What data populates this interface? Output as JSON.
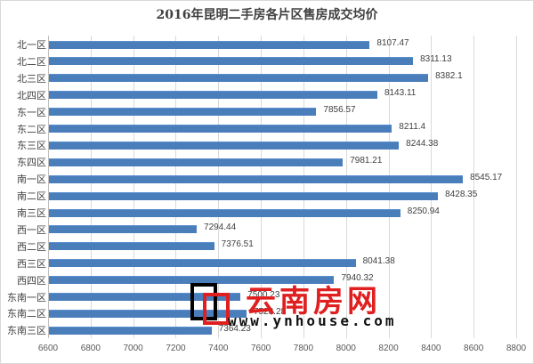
{
  "chart_data": {
    "type": "bar",
    "orientation": "horizontal",
    "title": "2016年昆明二手房各片区售房成交均价",
    "xlabel": "",
    "ylabel": "",
    "xlim": [
      6600,
      8800
    ],
    "x_ticks": [
      "6600",
      "6800",
      "7000",
      "7200",
      "7400",
      "7600",
      "7800",
      "8000",
      "8200",
      "8400",
      "8600",
      "8800"
    ],
    "grid": true,
    "legend": "none",
    "bar_color": "#4a7ebb",
    "categories": [
      "北一区",
      "北二区",
      "北三区",
      "北四区",
      "东一区",
      "东二区",
      "东三区",
      "东四区",
      "南一区",
      "南二区",
      "南三区",
      "西一区",
      "西二区",
      "西三区",
      "西四区",
      "东南一区",
      "东南二区",
      "东南三区"
    ],
    "values": [
      8107.47,
      8311.13,
      8382.1,
      8143.11,
      7856.57,
      8211.4,
      8244.38,
      7981.21,
      8545.17,
      8428.35,
      8250.94,
      7294.44,
      7376.51,
      8041.38,
      7940.32,
      7500.23,
      7528.28,
      7364.23
    ],
    "value_labels": [
      "8107.47",
      "8311.13",
      "8382.1",
      "8143.11",
      "7856.57",
      "8211.4",
      "8244.38",
      "7981.21",
      "8545.17",
      "8428.35",
      "8250.94",
      "7294.44",
      "7376.51",
      "8041.38",
      "7940.32",
      "7500.23",
      "7528.28",
      "7364.23"
    ]
  },
  "watermark": {
    "brand": "云南房网",
    "url": "www.ynhouse.com"
  }
}
